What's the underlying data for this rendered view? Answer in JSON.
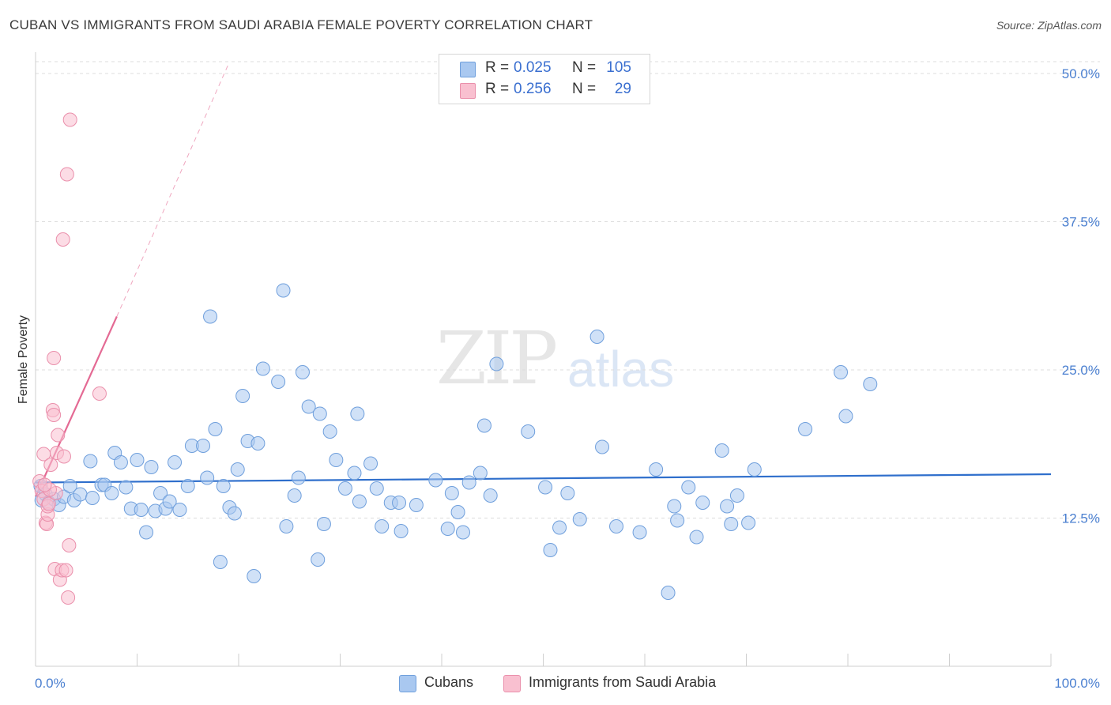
{
  "title": "CUBAN VS IMMIGRANTS FROM SAUDI ARABIA FEMALE POVERTY CORRELATION CHART",
  "source": "Source: ZipAtlas.com",
  "watermark": {
    "zip": "ZIP",
    "atlas": "atlas"
  },
  "legend": {
    "rows": [
      {
        "r_label": "R =",
        "r_value": "0.025",
        "n_label": "N =",
        "n_value": "105",
        "color": "#a9c8f0",
        "border": "#6f9fdc"
      },
      {
        "r_label": "R =",
        "r_value": "0.256",
        "n_label": "N =",
        "n_value": "29",
        "color": "#f9c0d0",
        "border": "#ea8fab"
      }
    ]
  },
  "bottom_legend": [
    {
      "label": "Cubans",
      "color": "#a9c8f0",
      "border": "#6f9fdc"
    },
    {
      "label": "Immigrants from Saudi Arabia",
      "color": "#f9c0d0",
      "border": "#ea8fab"
    }
  ],
  "chart_data": {
    "type": "scatter",
    "title": "CUBAN VS IMMIGRANTS FROM SAUDI ARABIA FEMALE POVERTY CORRELATION CHART",
    "xlabel": "",
    "ylabel": "Female Poverty",
    "xlim": [
      0,
      100
    ],
    "ylim": [
      0,
      51
    ],
    "x_tick_labels": [
      "0.0%",
      "100.0%"
    ],
    "y_ticks": [
      12.5,
      25.0,
      37.5,
      50.0
    ],
    "y_tick_labels": [
      "12.5%",
      "25.0%",
      "37.5%",
      "50.0%"
    ],
    "series": [
      {
        "name": "Cubans",
        "color": "#a9c8f0",
        "stroke": "#6f9fdc",
        "trend": {
          "x": [
            0,
            100
          ],
          "y": [
            15.5,
            16.2
          ],
          "color": "#2f6fcc"
        },
        "points": [
          [
            0.5,
            15.2
          ],
          [
            0.6,
            14.0
          ],
          [
            1.0,
            14.5
          ],
          [
            1.3,
            13.8
          ],
          [
            1.8,
            14.1
          ],
          [
            2.3,
            13.6
          ],
          [
            2.8,
            14.3
          ],
          [
            3.4,
            15.2
          ],
          [
            3.8,
            14.0
          ],
          [
            4.4,
            14.5
          ],
          [
            5.4,
            17.3
          ],
          [
            5.6,
            14.2
          ],
          [
            6.5,
            15.3
          ],
          [
            6.8,
            15.3
          ],
          [
            7.5,
            14.6
          ],
          [
            7.8,
            18.0
          ],
          [
            8.4,
            17.2
          ],
          [
            8.9,
            15.1
          ],
          [
            9.4,
            13.3
          ],
          [
            10.0,
            17.4
          ],
          [
            10.4,
            13.2
          ],
          [
            10.9,
            11.3
          ],
          [
            11.4,
            16.8
          ],
          [
            11.8,
            13.1
          ],
          [
            12.3,
            14.6
          ],
          [
            12.8,
            13.3
          ],
          [
            13.2,
            13.9
          ],
          [
            13.7,
            17.2
          ],
          [
            14.2,
            13.2
          ],
          [
            15.0,
            15.2
          ],
          [
            15.4,
            18.6
          ],
          [
            16.5,
            18.6
          ],
          [
            16.9,
            15.9
          ],
          [
            17.2,
            29.5
          ],
          [
            17.7,
            20.0
          ],
          [
            18.2,
            8.8
          ],
          [
            18.5,
            15.2
          ],
          [
            19.1,
            13.4
          ],
          [
            19.6,
            12.9
          ],
          [
            19.9,
            16.6
          ],
          [
            20.4,
            22.8
          ],
          [
            20.9,
            19.0
          ],
          [
            21.5,
            7.6
          ],
          [
            21.9,
            18.8
          ],
          [
            22.4,
            25.1
          ],
          [
            23.9,
            24.0
          ],
          [
            24.4,
            31.7
          ],
          [
            24.7,
            11.8
          ],
          [
            25.5,
            14.4
          ],
          [
            25.9,
            15.9
          ],
          [
            26.3,
            24.8
          ],
          [
            26.9,
            21.9
          ],
          [
            27.8,
            9.0
          ],
          [
            28.0,
            21.3
          ],
          [
            28.4,
            12.0
          ],
          [
            29.0,
            19.8
          ],
          [
            29.6,
            17.4
          ],
          [
            30.5,
            15.0
          ],
          [
            31.4,
            16.3
          ],
          [
            31.7,
            21.3
          ],
          [
            31.9,
            13.9
          ],
          [
            33.0,
            17.1
          ],
          [
            33.6,
            15.0
          ],
          [
            34.1,
            11.8
          ],
          [
            35.0,
            13.8
          ],
          [
            35.8,
            13.8
          ],
          [
            36.0,
            11.4
          ],
          [
            37.5,
            13.6
          ],
          [
            39.4,
            15.7
          ],
          [
            40.6,
            11.6
          ],
          [
            41.0,
            14.6
          ],
          [
            41.6,
            13.0
          ],
          [
            42.1,
            11.3
          ],
          [
            42.7,
            15.5
          ],
          [
            43.8,
            16.3
          ],
          [
            44.2,
            20.3
          ],
          [
            44.8,
            14.4
          ],
          [
            45.4,
            25.5
          ],
          [
            48.5,
            19.8
          ],
          [
            50.2,
            15.1
          ],
          [
            50.7,
            9.8
          ],
          [
            51.6,
            11.7
          ],
          [
            52.4,
            14.6
          ],
          [
            53.6,
            12.4
          ],
          [
            55.3,
            27.8
          ],
          [
            55.8,
            18.5
          ],
          [
            57.2,
            11.8
          ],
          [
            59.5,
            11.3
          ],
          [
            61.1,
            16.6
          ],
          [
            62.3,
            6.2
          ],
          [
            62.9,
            13.5
          ],
          [
            63.2,
            12.3
          ],
          [
            64.3,
            15.1
          ],
          [
            65.1,
            10.9
          ],
          [
            65.7,
            13.8
          ],
          [
            67.6,
            18.2
          ],
          [
            68.1,
            13.5
          ],
          [
            68.5,
            12.0
          ],
          [
            69.1,
            14.4
          ],
          [
            70.2,
            12.1
          ],
          [
            70.8,
            16.6
          ],
          [
            75.8,
            20.0
          ],
          [
            79.3,
            24.8
          ],
          [
            79.8,
            21.1
          ],
          [
            82.2,
            23.8
          ]
        ]
      },
      {
        "name": "Immigrants from Saudi Arabia",
        "color": "#f9c0d0",
        "stroke": "#ea8fab",
        "trend": {
          "x": [
            0,
            8.0
          ],
          "y": [
            14.3,
            29.5
          ],
          "color": "#e46a94"
        },
        "trend_dashed": {
          "x": [
            8.0,
            19.0
          ],
          "y": [
            29.5,
            50.8
          ]
        },
        "points": [
          [
            0.4,
            15.6
          ],
          [
            0.6,
            14.8
          ],
          [
            0.8,
            14.1
          ],
          [
            0.8,
            17.9
          ],
          [
            1.0,
            12.1
          ],
          [
            1.1,
            12.0
          ],
          [
            1.2,
            12.8
          ],
          [
            1.2,
            13.5
          ],
          [
            1.3,
            13.7
          ],
          [
            1.5,
            17.0
          ],
          [
            1.7,
            21.6
          ],
          [
            1.8,
            21.2
          ],
          [
            1.8,
            26.0
          ],
          [
            1.9,
            8.2
          ],
          [
            2.1,
            18.0
          ],
          [
            2.2,
            19.5
          ],
          [
            2.4,
            7.3
          ],
          [
            2.6,
            8.1
          ],
          [
            2.7,
            36.0
          ],
          [
            2.8,
            17.7
          ],
          [
            3.0,
            8.1
          ],
          [
            3.1,
            41.5
          ],
          [
            3.2,
            5.8
          ],
          [
            3.3,
            10.2
          ],
          [
            3.4,
            46.1
          ],
          [
            6.3,
            23.0
          ],
          [
            2.0,
            14.6
          ],
          [
            1.4,
            14.9
          ],
          [
            0.9,
            15.3
          ]
        ]
      }
    ]
  }
}
